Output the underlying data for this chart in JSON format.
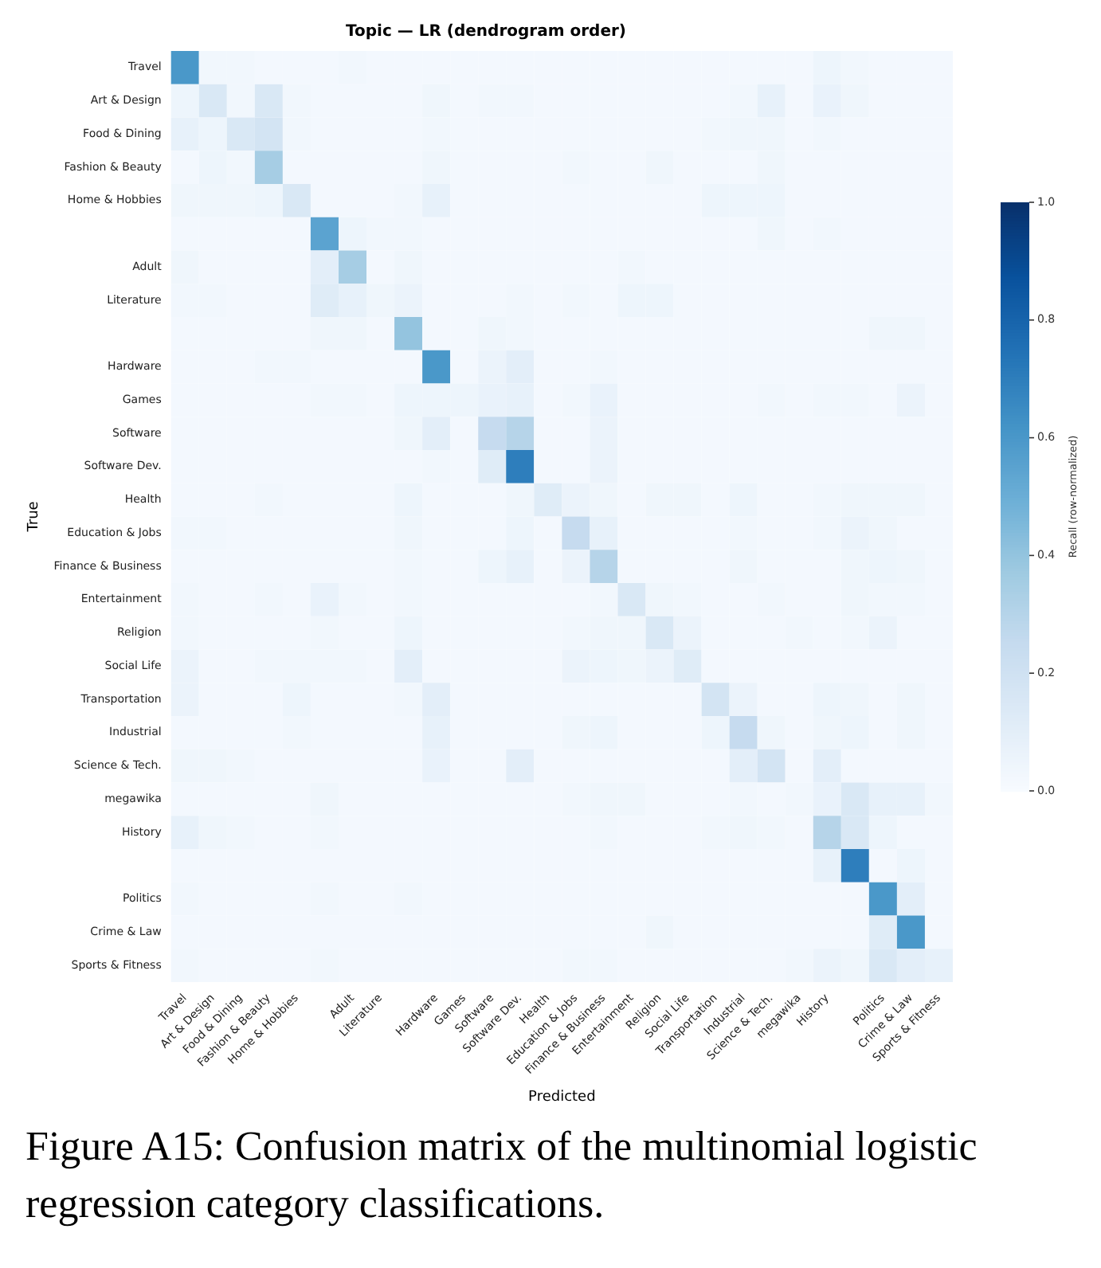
{
  "chart_data": {
    "type": "heatmap",
    "title": "Topic — LR (dendrogram order)",
    "xlabel": "Predicted",
    "ylabel": "True",
    "clabel": "Recall (row-normalized)",
    "clim": [
      0,
      1
    ],
    "cticks": [
      {
        "value": 0,
        "label": "0.0"
      },
      0.2,
      0.4,
      0.6,
      0.8,
      {
        "value": 1,
        "label": "1.0"
      }
    ],
    "annotations": [
      "Figure A15: Confusion matrix of the multinomial logistic regression category classifications."
    ],
    "categories": [
      "Travel",
      "Art & Design",
      "Food & Dining",
      "Fashion & Beauty",
      "Home & Hobbies",
      null,
      "Adult",
      "Literature",
      null,
      "Hardware",
      "Games",
      "Software",
      "Software Dev.",
      "Health",
      "Education & Jobs",
      "Finance & Business",
      "Entertainment",
      "Religion",
      "Social Life",
      "Transportation",
      "Industrial",
      "Science & Tech.",
      "megawika",
      "History",
      null,
      "Politics",
      "Crime & Law",
      "Sports & Fitness"
    ],
    "y_categories": [
      "Travel",
      "Art & Design",
      "Food & Dining",
      "Fashion & Beauty",
      "Home & Hobbies",
      null,
      "Adult",
      "Literature",
      null,
      "Hardware",
      "Games",
      "Software",
      "Software Dev.",
      "Health",
      "Education & Jobs",
      "Finance & Business",
      "Entertainment",
      "Religion",
      "Social Life",
      "Transportation",
      "Industrial",
      "Science & Tech.",
      "megawika",
      "History",
      null,
      "Politics",
      "Crime & Law",
      "Sports & Fitness"
    ],
    "cells": [
      [
        0.6,
        0.03,
        0.03,
        0.02,
        0.02,
        0.02,
        0.03,
        0.02,
        0.02,
        0.02,
        0.02,
        0.02,
        0.02,
        0.02,
        0.02,
        0.02,
        0.02,
        0.02,
        0.02,
        0.02,
        0.02,
        0.02,
        0.02,
        0.05,
        0.03,
        0.02,
        0.02,
        0.02
      ],
      [
        0.05,
        0.15,
        0.03,
        0.15,
        0.03,
        0.02,
        0.02,
        0.02,
        0.02,
        0.04,
        0.02,
        0.03,
        0.03,
        0.02,
        0.02,
        0.02,
        0.02,
        0.02,
        0.02,
        0.02,
        0.03,
        0.08,
        0.02,
        0.07,
        0.04,
        0.02,
        0.02,
        0.02
      ],
      [
        0.08,
        0.05,
        0.15,
        0.18,
        0.03,
        0.02,
        0.02,
        0.02,
        0.02,
        0.03,
        0.02,
        0.02,
        0.02,
        0.02,
        0.02,
        0.02,
        0.02,
        0.02,
        0.02,
        0.03,
        0.04,
        0.04,
        0.02,
        0.03,
        0.02,
        0.02,
        0.02,
        0.02
      ],
      [
        0.02,
        0.05,
        0.03,
        0.35,
        0.02,
        0.02,
        0.02,
        0.02,
        0.02,
        0.04,
        0.02,
        0.02,
        0.02,
        0.02,
        0.03,
        0.02,
        0.02,
        0.04,
        0.02,
        0.02,
        0.02,
        0.04,
        0.02,
        0.02,
        0.02,
        0.02,
        0.02,
        0.02
      ],
      [
        0.04,
        0.04,
        0.04,
        0.05,
        0.15,
        0.02,
        0.02,
        0.02,
        0.03,
        0.08,
        0.02,
        0.02,
        0.02,
        0.02,
        0.02,
        0.02,
        0.02,
        0.02,
        0.02,
        0.05,
        0.05,
        0.05,
        0.02,
        0.02,
        0.02,
        0.02,
        0.02,
        0.02
      ],
      [
        0.02,
        0.02,
        0.02,
        0.02,
        0.02,
        0.55,
        0.05,
        0.03,
        0.03,
        0.02,
        0.02,
        0.02,
        0.02,
        0.02,
        0.02,
        0.02,
        0.02,
        0.02,
        0.02,
        0.02,
        0.02,
        0.04,
        0.02,
        0.03,
        0.02,
        0.02,
        0.02,
        0.02
      ],
      [
        0.04,
        0.02,
        0.02,
        0.02,
        0.02,
        0.1,
        0.35,
        0.02,
        0.04,
        0.02,
        0.02,
        0.02,
        0.02,
        0.02,
        0.02,
        0.02,
        0.03,
        0.02,
        0.02,
        0.02,
        0.02,
        0.02,
        0.02,
        0.02,
        0.02,
        0.02,
        0.02,
        0.02
      ],
      [
        0.03,
        0.03,
        0.02,
        0.02,
        0.02,
        0.12,
        0.08,
        0.04,
        0.06,
        0.02,
        0.02,
        0.02,
        0.03,
        0.02,
        0.03,
        0.02,
        0.05,
        0.05,
        0.02,
        0.02,
        0.02,
        0.02,
        0.02,
        0.02,
        0.02,
        0.02,
        0.02,
        0.02
      ],
      [
        0.02,
        0.02,
        0.02,
        0.02,
        0.02,
        0.04,
        0.04,
        0.02,
        0.4,
        0.02,
        0.02,
        0.04,
        0.03,
        0.02,
        0.02,
        0.02,
        0.02,
        0.02,
        0.02,
        0.02,
        0.02,
        0.02,
        0.02,
        0.02,
        0.02,
        0.04,
        0.04,
        0.02
      ],
      [
        0.02,
        0.02,
        0.02,
        0.03,
        0.03,
        0.02,
        0.02,
        0.02,
        0.02,
        0.6,
        0.02,
        0.06,
        0.1,
        0.02,
        0.02,
        0.03,
        0.02,
        0.02,
        0.02,
        0.02,
        0.02,
        0.02,
        0.02,
        0.02,
        0.02,
        0.02,
        0.02,
        0.02
      ],
      [
        0.02,
        0.02,
        0.02,
        0.02,
        0.02,
        0.03,
        0.03,
        0.02,
        0.05,
        0.05,
        0.05,
        0.07,
        0.08,
        0.02,
        0.03,
        0.07,
        0.02,
        0.02,
        0.02,
        0.02,
        0.02,
        0.03,
        0.02,
        0.03,
        0.03,
        0.02,
        0.06,
        0.02
      ],
      [
        0.02,
        0.02,
        0.02,
        0.02,
        0.02,
        0.02,
        0.02,
        0.02,
        0.04,
        0.1,
        0.02,
        0.25,
        0.3,
        0.02,
        0.02,
        0.06,
        0.02,
        0.02,
        0.02,
        0.02,
        0.02,
        0.02,
        0.02,
        0.02,
        0.02,
        0.02,
        0.02,
        0.02
      ],
      [
        0.02,
        0.02,
        0.02,
        0.02,
        0.02,
        0.02,
        0.02,
        0.02,
        0.02,
        0.03,
        0.02,
        0.12,
        0.7,
        0.02,
        0.02,
        0.06,
        0.02,
        0.02,
        0.02,
        0.02,
        0.02,
        0.02,
        0.02,
        0.02,
        0.02,
        0.02,
        0.02,
        0.02
      ],
      [
        0.02,
        0.02,
        0.02,
        0.03,
        0.02,
        0.02,
        0.02,
        0.02,
        0.05,
        0.02,
        0.02,
        0.02,
        0.04,
        0.12,
        0.06,
        0.04,
        0.02,
        0.04,
        0.04,
        0.02,
        0.05,
        0.02,
        0.02,
        0.03,
        0.04,
        0.04,
        0.04,
        0.02
      ],
      [
        0.03,
        0.03,
        0.02,
        0.02,
        0.02,
        0.02,
        0.02,
        0.02,
        0.04,
        0.02,
        0.02,
        0.02,
        0.05,
        0.02,
        0.25,
        0.08,
        0.02,
        0.02,
        0.02,
        0.02,
        0.03,
        0.02,
        0.02,
        0.03,
        0.06,
        0.04,
        0.02,
        0.02
      ],
      [
        0.02,
        0.02,
        0.02,
        0.02,
        0.02,
        0.02,
        0.02,
        0.02,
        0.03,
        0.02,
        0.02,
        0.05,
        0.08,
        0.02,
        0.06,
        0.3,
        0.02,
        0.02,
        0.02,
        0.02,
        0.04,
        0.02,
        0.02,
        0.02,
        0.04,
        0.05,
        0.04,
        0.02
      ],
      [
        0.03,
        0.02,
        0.02,
        0.03,
        0.02,
        0.07,
        0.03,
        0.02,
        0.03,
        0.02,
        0.02,
        0.02,
        0.02,
        0.02,
        0.02,
        0.03,
        0.15,
        0.04,
        0.03,
        0.02,
        0.02,
        0.03,
        0.02,
        0.02,
        0.04,
        0.03,
        0.03,
        0.02
      ],
      [
        0.03,
        0.02,
        0.02,
        0.02,
        0.02,
        0.03,
        0.02,
        0.02,
        0.05,
        0.02,
        0.02,
        0.02,
        0.02,
        0.02,
        0.03,
        0.04,
        0.04,
        0.15,
        0.06,
        0.02,
        0.02,
        0.02,
        0.03,
        0.02,
        0.03,
        0.06,
        0.02,
        0.02
      ],
      [
        0.06,
        0.02,
        0.02,
        0.03,
        0.03,
        0.03,
        0.03,
        0.02,
        0.1,
        0.02,
        0.02,
        0.02,
        0.02,
        0.02,
        0.06,
        0.05,
        0.04,
        0.06,
        0.12,
        0.02,
        0.02,
        0.02,
        0.02,
        0.02,
        0.02,
        0.02,
        0.02,
        0.02
      ],
      [
        0.06,
        0.02,
        0.02,
        0.02,
        0.05,
        0.02,
        0.02,
        0.02,
        0.03,
        0.1,
        0.02,
        0.02,
        0.02,
        0.02,
        0.02,
        0.02,
        0.02,
        0.02,
        0.02,
        0.18,
        0.06,
        0.02,
        0.02,
        0.05,
        0.04,
        0.02,
        0.04,
        0.02
      ],
      [
        0.02,
        0.02,
        0.02,
        0.02,
        0.03,
        0.02,
        0.02,
        0.02,
        0.02,
        0.08,
        0.02,
        0.02,
        0.02,
        0.02,
        0.04,
        0.05,
        0.02,
        0.02,
        0.02,
        0.05,
        0.25,
        0.04,
        0.02,
        0.04,
        0.05,
        0.02,
        0.04,
        0.02
      ],
      [
        0.04,
        0.04,
        0.03,
        0.02,
        0.02,
        0.02,
        0.02,
        0.02,
        0.02,
        0.07,
        0.02,
        0.02,
        0.1,
        0.02,
        0.02,
        0.02,
        0.02,
        0.02,
        0.02,
        0.02,
        0.1,
        0.18,
        0.02,
        0.1,
        0.02,
        0.02,
        0.02,
        0.02
      ],
      [
        0.02,
        0.02,
        0.02,
        0.02,
        0.02,
        0.04,
        0.02,
        0.02,
        0.02,
        0.02,
        0.02,
        0.02,
        0.02,
        0.02,
        0.03,
        0.04,
        0.04,
        0.02,
        0.02,
        0.02,
        0.03,
        0.02,
        0.03,
        0.07,
        0.15,
        0.08,
        0.08,
        0.03
      ],
      [
        0.08,
        0.04,
        0.03,
        0.02,
        0.02,
        0.03,
        0.02,
        0.02,
        0.02,
        0.02,
        0.02,
        0.02,
        0.02,
        0.02,
        0.02,
        0.03,
        0.02,
        0.02,
        0.02,
        0.03,
        0.04,
        0.03,
        0.02,
        0.3,
        0.15,
        0.05,
        0.02,
        0.02
      ],
      [
        0.02,
        0.02,
        0.02,
        0.02,
        0.02,
        0.02,
        0.02,
        0.02,
        0.02,
        0.02,
        0.02,
        0.02,
        0.02,
        0.02,
        0.02,
        0.02,
        0.02,
        0.02,
        0.02,
        0.02,
        0.02,
        0.02,
        0.02,
        0.08,
        0.7,
        0.02,
        0.05,
        0.02
      ],
      [
        0.03,
        0.02,
        0.02,
        0.02,
        0.02,
        0.03,
        0.02,
        0.02,
        0.03,
        0.02,
        0.02,
        0.02,
        0.02,
        0.02,
        0.02,
        0.02,
        0.02,
        0.02,
        0.02,
        0.02,
        0.02,
        0.02,
        0.02,
        0.02,
        0.02,
        0.6,
        0.1,
        0.02
      ],
      [
        0.02,
        0.02,
        0.02,
        0.02,
        0.02,
        0.02,
        0.02,
        0.02,
        0.02,
        0.02,
        0.02,
        0.02,
        0.02,
        0.02,
        0.02,
        0.02,
        0.02,
        0.04,
        0.02,
        0.02,
        0.02,
        0.02,
        0.02,
        0.02,
        0.02,
        0.12,
        0.6,
        0.02
      ],
      [
        0.03,
        0.02,
        0.02,
        0.02,
        0.02,
        0.03,
        0.02,
        0.02,
        0.02,
        0.02,
        0.02,
        0.02,
        0.02,
        0.02,
        0.03,
        0.03,
        0.02,
        0.02,
        0.02,
        0.02,
        0.02,
        0.02,
        0.03,
        0.06,
        0.04,
        0.15,
        0.1,
        0.08
      ]
    ]
  }
}
